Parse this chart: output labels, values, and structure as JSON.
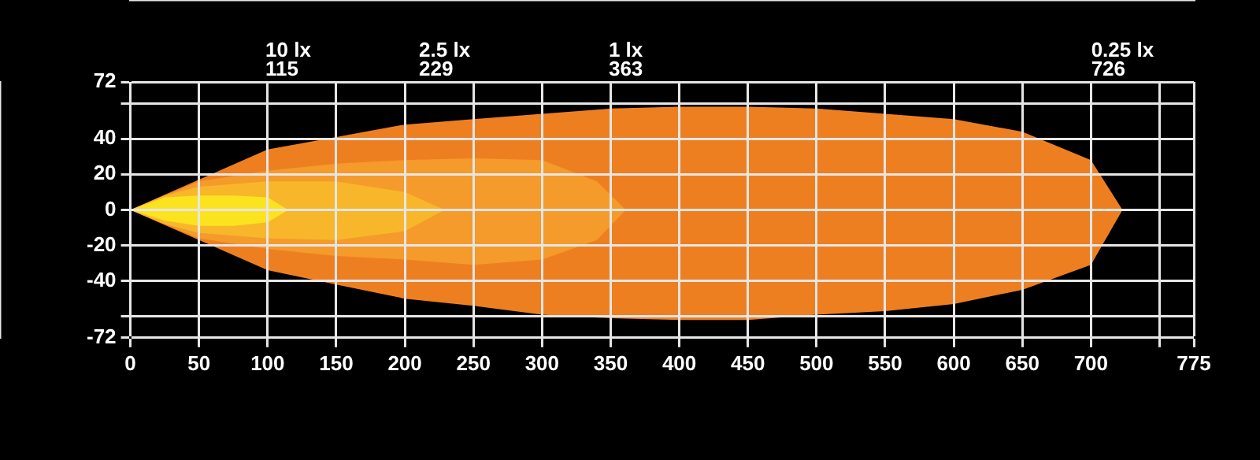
{
  "chart_data": {
    "type": "area",
    "series": [
      {
        "color": "#ee7f21",
        "x": [
          0,
          50,
          100,
          150,
          200,
          250,
          300,
          350,
          400,
          450,
          500,
          550,
          600,
          650,
          700,
          723
        ],
        "values": [
          0,
          17,
          34,
          41,
          48,
          51,
          54,
          57,
          58,
          58,
          57,
          54,
          51,
          44,
          28,
          0
        ]
      },
      {
        "color": "#ee7f21",
        "x": [
          0,
          50,
          100,
          150,
          200,
          250,
          300,
          350,
          400,
          450,
          500,
          550,
          600,
          650,
          700,
          723
        ],
        "values": [
          0,
          -17,
          -34,
          -42,
          -50,
          -54,
          -59,
          -61,
          -62,
          -62,
          -59,
          -57,
          -53,
          -45,
          -31,
          0
        ]
      },
      {
        "color": "#f49b2b",
        "x": [
          0,
          50,
          100,
          150,
          200,
          250,
          300,
          340,
          361
        ],
        "values": [
          0,
          16,
          22,
          26,
          28,
          29,
          28,
          16,
          0
        ]
      },
      {
        "color": "#f49b2b",
        "x": [
          0,
          50,
          100,
          150,
          200,
          250,
          300,
          340,
          361
        ],
        "values": [
          0,
          -16,
          -22,
          -26,
          -28,
          -31,
          -28,
          -17,
          0
        ]
      },
      {
        "color": "#f8b72b",
        "x": [
          0,
          25,
          50,
          100,
          150,
          200,
          229
        ],
        "values": [
          0,
          8,
          13,
          16,
          16,
          10,
          0
        ]
      },
      {
        "color": "#f8b72b",
        "x": [
          0,
          25,
          50,
          100,
          150,
          200,
          229
        ],
        "values": [
          0,
          -8,
          -13,
          -16,
          -17,
          -12,
          0
        ]
      },
      {
        "color": "#fbe41f",
        "x": [
          0,
          25,
          50,
          75,
          100,
          115
        ],
        "values": [
          0,
          7,
          8,
          8,
          7,
          0
        ]
      },
      {
        "color": "#fbe41f",
        "x": [
          0,
          25,
          50,
          75,
          100,
          115
        ],
        "values": [
          0,
          -6,
          -9,
          -9,
          -7,
          0
        ]
      }
    ],
    "annotations": [
      "10 lx\n115",
      "2.5 lx\n229",
      "1 lx\n363",
      "0.25 lx\n726"
    ],
    "xlim": [
      0,
      775
    ],
    "xticks": [
      0,
      50,
      100,
      150,
      200,
      250,
      300,
      350,
      400,
      450,
      500,
      550,
      600,
      650,
      700,
      {
        "value": 750,
        "label": null
      },
      775
    ],
    "ylim": [
      -72,
      72
    ],
    "yticks": [
      72,
      {
        "value": 60,
        "label": null
      },
      40,
      20,
      0,
      -20,
      -40,
      {
        "value": -60,
        "label": null
      },
      -72
    ],
    "grid": true,
    "legend": false
  }
}
